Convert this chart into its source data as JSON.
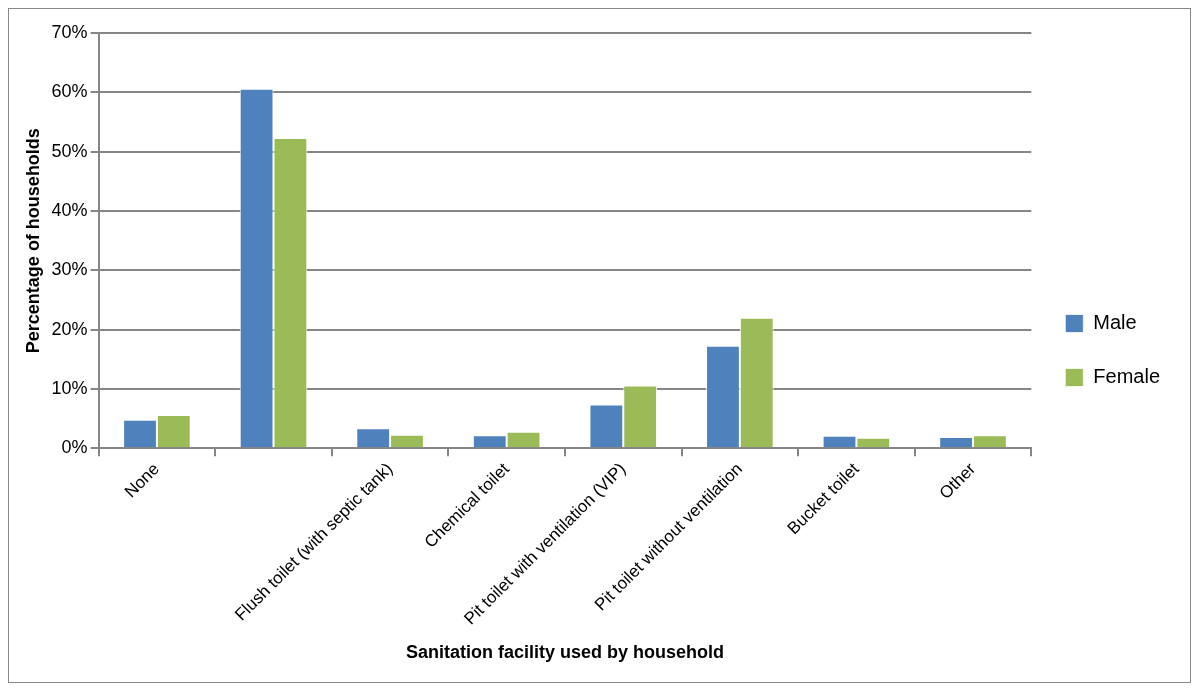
{
  "chart_data": {
    "type": "bar",
    "xlabel": "Sanitation facility used by household",
    "ylabel": "Percentage of households",
    "categories": [
      "None",
      null,
      "Flush toilet (with septic tank)",
      "Chemical toilet",
      "Pit toilet with ventilation (VIP)",
      "Pit toilet without ventilation",
      "Bucket toilet",
      "Other"
    ],
    "series": [
      {
        "name": "Male",
        "color": "#4f81bd",
        "values": [
          4.8,
          60.6,
          3.4,
          2.2,
          7.4,
          17.3,
          2.1,
          1.9
        ]
      },
      {
        "name": "Female",
        "color": "#9bbb59",
        "values": [
          5.6,
          52.3,
          2.3,
          2.8,
          10.6,
          22.0,
          1.8,
          2.2
        ]
      }
    ],
    "ylim": [
      0,
      70
    ],
    "yticks": [
      {
        "value": 0,
        "label": "0%"
      },
      {
        "value": 10,
        "label": "10%"
      },
      {
        "value": 20,
        "label": "20%"
      },
      {
        "value": 30,
        "label": "30%"
      },
      {
        "value": 40,
        "label": "40%"
      },
      {
        "value": 50,
        "label": "50%"
      },
      {
        "value": 60,
        "label": "60%"
      },
      {
        "value": 70,
        "label": "70%"
      }
    ],
    "grid": "y",
    "legend": "right"
  }
}
